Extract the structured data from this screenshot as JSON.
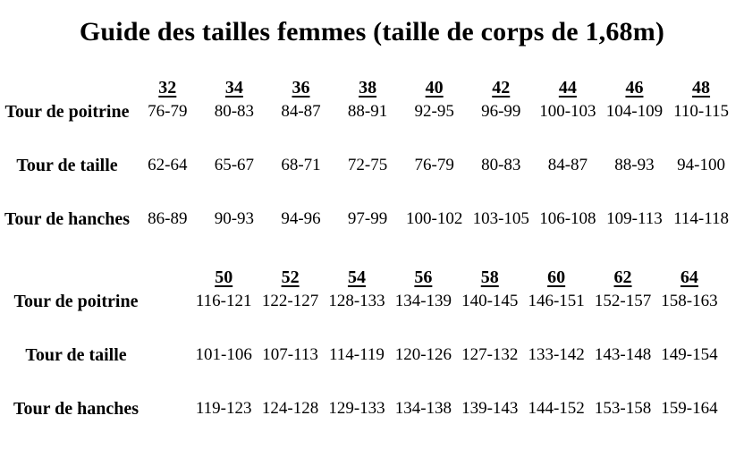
{
  "title": "Guide des tailles femmes (taille de corps de  1,68m)",
  "tables": [
    {
      "sizes": [
        "32",
        "34",
        "36",
        "38",
        "40",
        "42",
        "44",
        "46",
        "48"
      ],
      "rows": [
        {
          "label": "Tour de poitrine",
          "values": [
            "76-79",
            "80-83",
            "84-87",
            "88-91",
            "92-95",
            "96-99",
            "100-103",
            "104-109",
            "110-115"
          ]
        },
        {
          "label": "Tour de taille",
          "values": [
            "62-64",
            "65-67",
            "68-71",
            "72-75",
            "76-79",
            "80-83",
            "84-87",
            "88-93",
            "94-100"
          ]
        },
        {
          "label": "Tour de hanches",
          "values": [
            "86-89",
            "90-93",
            "94-96",
            "97-99",
            "100-102",
            "103-105",
            "106-108",
            "109-113",
            "114-118"
          ]
        }
      ]
    },
    {
      "sizes": [
        "50",
        "52",
        "54",
        "56",
        "58",
        "60",
        "62",
        "64"
      ],
      "rows": [
        {
          "label": "Tour de poitrine",
          "values": [
            "116-121",
            "122-127",
            "128-133",
            "134-139",
            "140-145",
            "146-151",
            "152-157",
            "158-163"
          ]
        },
        {
          "label": "Tour de taille",
          "values": [
            "101-106",
            "107-113",
            "114-119",
            "120-126",
            "127-132",
            "133-142",
            "143-148",
            "149-154"
          ]
        },
        {
          "label": "Tour de hanches",
          "values": [
            "119-123",
            "124-128",
            "129-133",
            "134-138",
            "139-143",
            "144-152",
            "153-158",
            "159-164"
          ]
        }
      ]
    }
  ]
}
